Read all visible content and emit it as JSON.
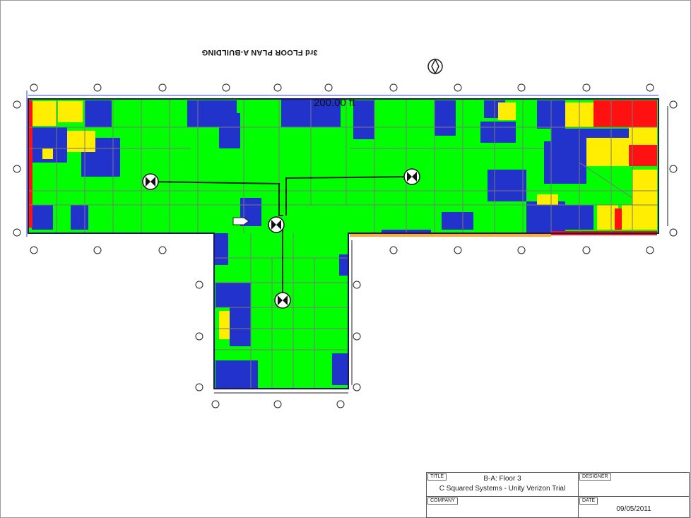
{
  "plan": {
    "title": "3rd FLOOR PLAN A-BUILDING",
    "scale_label": "200.00 ft",
    "north_arrow_icon": "north-arrow-icon",
    "access_point_icon": "access-point-icon",
    "colors": {
      "strong": "#00ff00",
      "good": "#2233cc",
      "medium": "#ffee00",
      "weak": "#ff1111",
      "wall": "#7a7a7a",
      "grid": "#222222"
    }
  },
  "title_block": {
    "title_tag": "TITLE",
    "title_line1": "B-A: Floor 3",
    "title_line2": "C Squared Systems - Unity Verizon Trial",
    "designer_tag": "DESIGNER",
    "company_tag": "COMPANY",
    "date_tag": "DATE",
    "date": "09/05/2011"
  }
}
